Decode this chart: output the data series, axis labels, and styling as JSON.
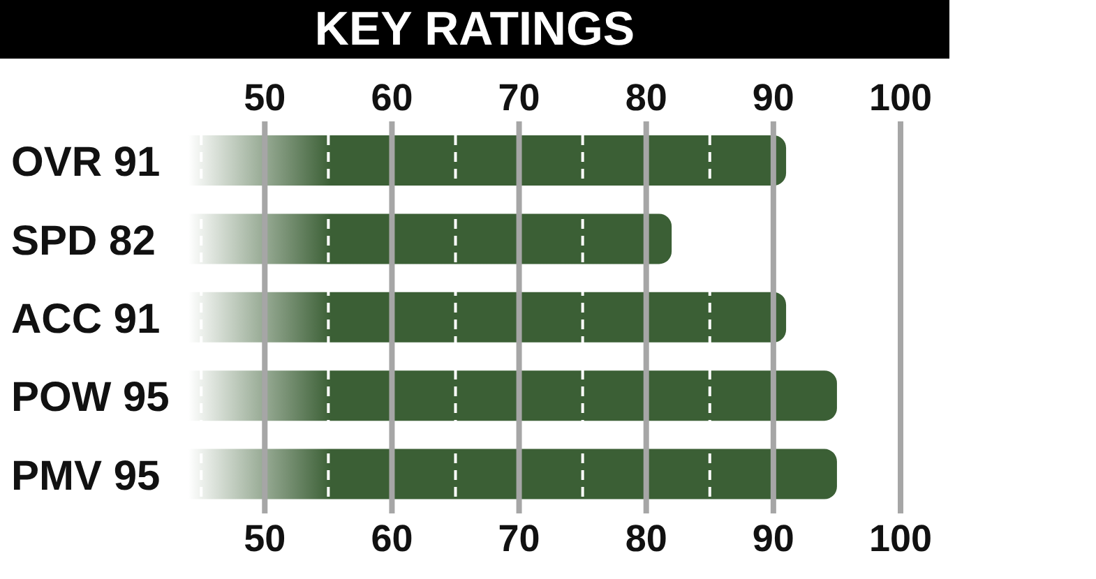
{
  "chart_data": {
    "type": "bar",
    "orientation": "horizontal",
    "title": "KEY RATINGS",
    "categories": [
      "OVR 91",
      "SPD 82",
      "ACC 91",
      "POW 95",
      "PMV 95"
    ],
    "values": [
      91,
      82,
      91,
      95,
      95
    ],
    "color": "#3b5f35",
    "xlim": [
      44,
      100
    ],
    "xticks": [
      {
        "value": 45,
        "label": null
      },
      50,
      {
        "value": 55,
        "label": null
      },
      60,
      {
        "value": 65,
        "label": null
      },
      70,
      {
        "value": 75,
        "label": null
      },
      80,
      {
        "value": 85,
        "label": null
      },
      90,
      100
    ],
    "x2lim": [
      44,
      100
    ],
    "x2ticks": [
      50,
      60,
      70,
      80,
      90,
      100
    ],
    "grid": "x"
  }
}
